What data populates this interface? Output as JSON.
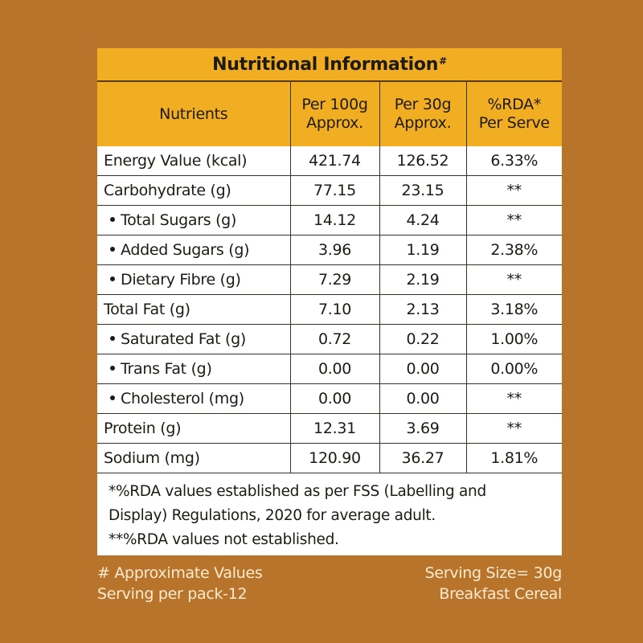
{
  "title": {
    "text": "Nutritional Information",
    "superscript": "#"
  },
  "columns": [
    {
      "line1": "Nutrients",
      "line2": ""
    },
    {
      "line1": "Per 100g",
      "line2": "Approx."
    },
    {
      "line1": "Per 30g",
      "line2": "Approx."
    },
    {
      "line1": "%RDA*",
      "line2": "Per Serve"
    }
  ],
  "rows": [
    {
      "nutrient": "Energy Value (kcal)",
      "sub": false,
      "per100g": "421.74",
      "per30g": "126.52",
      "rda": "6.33%"
    },
    {
      "nutrient": "Carbohydrate (g)",
      "sub": false,
      "per100g": "77.15",
      "per30g": "23.15",
      "rda": "**"
    },
    {
      "nutrient": "Total Sugars (g)",
      "sub": true,
      "per100g": "14.12",
      "per30g": "4.24",
      "rda": "**"
    },
    {
      "nutrient": "Added Sugars (g)",
      "sub": true,
      "per100g": "3.96",
      "per30g": "1.19",
      "rda": "2.38%"
    },
    {
      "nutrient": "Dietary Fibre (g)",
      "sub": true,
      "per100g": "7.29",
      "per30g": "2.19",
      "rda": "**"
    },
    {
      "nutrient": "Total Fat (g)",
      "sub": false,
      "per100g": "7.10",
      "per30g": "2.13",
      "rda": "3.18%"
    },
    {
      "nutrient": "Saturated Fat (g)",
      "sub": true,
      "per100g": "0.72",
      "per30g": "0.22",
      "rda": "1.00%"
    },
    {
      "nutrient": "Trans Fat (g)",
      "sub": true,
      "per100g": "0.00",
      "per30g": "0.00",
      "rda": "0.00%"
    },
    {
      "nutrient": "Cholesterol (mg)",
      "sub": true,
      "per100g": "0.00",
      "per30g": "0.00",
      "rda": "**"
    },
    {
      "nutrient": "Protein (g)",
      "sub": false,
      "per100g": "12.31",
      "per30g": "3.69",
      "rda": "**"
    },
    {
      "nutrient": "Sodium (mg)",
      "sub": false,
      "per100g": "120.90",
      "per30g": "36.27",
      "rda": "1.81%"
    }
  ],
  "notes": [
    "*%RDA values established as per FSS (Labelling and",
    "Display) Regulations, 2020 for average adult.",
    "**%RDA values not established."
  ],
  "footer": {
    "left": [
      "# Approximate Values",
      "Serving per pack-12"
    ],
    "right": [
      "Serving Size= 30g",
      "Breakfast Cereal"
    ]
  },
  "colors": {
    "background": "#b8742b",
    "header": "#f1ae23",
    "table_body": "#ffffff",
    "footer_text": "#fcebd0",
    "text": "#1e1a14"
  }
}
